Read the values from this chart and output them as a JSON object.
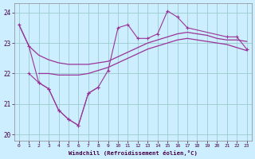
{
  "xlabel": "Windchill (Refroidissement éolien,°C)",
  "xlim": [
    -0.5,
    23.5
  ],
  "ylim": [
    19.8,
    24.3
  ],
  "yticks": [
    20,
    21,
    22,
    23,
    24
  ],
  "xticks": [
    0,
    1,
    2,
    3,
    4,
    5,
    6,
    7,
    8,
    9,
    10,
    11,
    12,
    13,
    14,
    15,
    16,
    17,
    18,
    19,
    20,
    21,
    22,
    23
  ],
  "bg_color": "#cceeff",
  "grid_color": "#99cccc",
  "line_color": "#993399",
  "smooth_upper": [
    23.6,
    22.9,
    22.6,
    22.45,
    22.35,
    22.3,
    22.3,
    22.3,
    22.35,
    22.4,
    22.55,
    22.7,
    22.85,
    23.0,
    23.1,
    23.2,
    23.3,
    23.35,
    23.3,
    23.25,
    23.15,
    23.1,
    23.1,
    23.05
  ],
  "smooth_lower": [
    null,
    null,
    22.0,
    22.0,
    21.95,
    21.95,
    21.95,
    22.0,
    22.1,
    22.2,
    22.35,
    22.5,
    22.65,
    22.8,
    22.9,
    23.0,
    23.1,
    23.15,
    23.1,
    23.05,
    23.0,
    22.95,
    22.85,
    22.75
  ],
  "jagged_x": [
    0,
    1,
    2,
    3,
    4,
    5,
    6,
    7,
    8,
    9,
    10,
    11,
    12,
    13,
    14,
    15,
    16,
    17,
    21,
    22,
    23
  ],
  "jagged_y": [
    23.6,
    22.9,
    21.7,
    21.5,
    20.8,
    20.5,
    20.3,
    21.35,
    21.55,
    22.1,
    23.5,
    23.6,
    23.15,
    23.15,
    23.3,
    24.05,
    23.85,
    23.5,
    23.2,
    23.2,
    22.8
  ],
  "dip_x": [
    1,
    2,
    3,
    4,
    5,
    6,
    7,
    8
  ],
  "dip_y": [
    22.0,
    21.7,
    21.5,
    20.8,
    20.5,
    20.3,
    21.35,
    21.55
  ]
}
